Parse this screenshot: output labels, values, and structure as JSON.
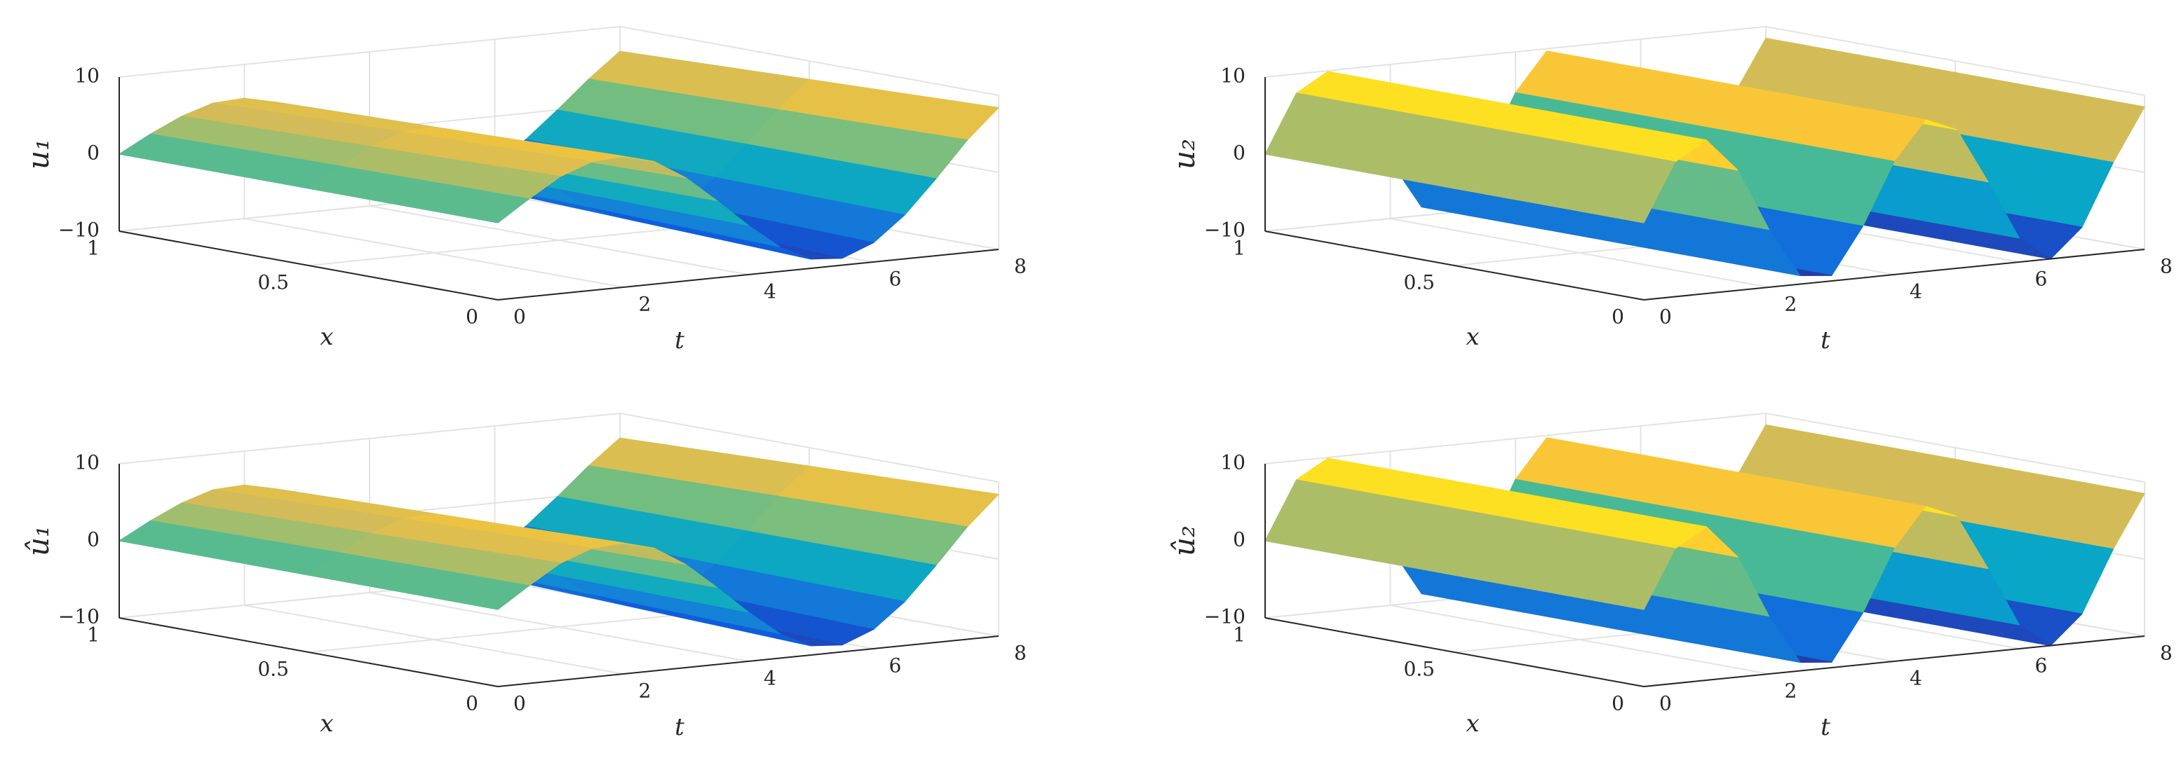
{
  "chart_data": [
    {
      "type": "surface",
      "zlabel": "u₁",
      "xlabel": "x",
      "tlabel": "t",
      "x": [
        0,
        0.5,
        1
      ],
      "t": [
        0,
        0.5,
        1,
        1.5,
        2,
        2.5,
        3,
        3.5,
        4,
        4.5,
        5,
        5.5,
        6,
        6.5,
        7,
        7.5,
        8
      ],
      "z": [
        [
          0,
          2.7,
          5.2,
          6.7,
          7.0,
          5.9,
          3.4,
          0,
          -3.6,
          -6.8,
          -8.8,
          -9.1,
          -7.5,
          -4.3,
          0,
          4.6,
          8.4
        ],
        [
          0,
          2.5,
          4.6,
          6.1,
          6.3,
          5.3,
          3.0,
          0,
          -3.3,
          -6.1,
          -7.9,
          -8.2,
          -6.8,
          -3.9,
          0,
          4.1,
          7.6
        ],
        [
          0,
          2.2,
          4.1,
          5.4,
          5.6,
          4.7,
          2.7,
          0,
          -2.9,
          -5.4,
          -7.0,
          -7.3,
          -6.0,
          -3.4,
          0,
          3.6,
          6.8
        ]
      ],
      "xlim": [
        0,
        1
      ],
      "tlim": [
        0,
        8
      ],
      "zlim": [
        -10,
        10
      ],
      "xticks": [
        0,
        0.5,
        1
      ],
      "tticks": [
        0,
        2,
        4,
        6,
        8
      ],
      "zticks": [
        {
          "value": -10,
          "label": "−10"
        },
        0,
        10
      ],
      "colormap": "parula",
      "grid": true
    },
    {
      "type": "surface",
      "zlabel": "u₂",
      "xlabel": "x",
      "tlabel": "t",
      "x": [
        0,
        0.5,
        1
      ],
      "t": [
        0,
        0.5,
        1,
        1.5,
        2,
        2.5,
        3,
        3.5,
        4,
        4.5,
        5,
        5.5,
        6,
        6.5,
        7,
        7.5,
        8
      ],
      "z": [
        [
          0,
          7.5,
          9.9,
          5.6,
          -2.5,
          -8.9,
          -9.3,
          -3.3,
          4.7,
          9.7,
          8.0,
          0.8,
          -6.9,
          -10.0,
          -6.3,
          1.7,
          8.5
        ],
        [
          0,
          7.5,
          9.9,
          5.6,
          -2.5,
          -8.9,
          -9.3,
          -3.3,
          4.7,
          9.7,
          8.0,
          0.8,
          -6.9,
          -10.0,
          -6.3,
          1.7,
          8.5
        ],
        [
          0,
          7.5,
          9.9,
          5.6,
          -2.5,
          -8.9,
          -9.3,
          -3.3,
          4.7,
          9.7,
          8.0,
          0.8,
          -6.9,
          -10.0,
          -6.3,
          1.7,
          8.5
        ]
      ],
      "xlim": [
        0,
        1
      ],
      "tlim": [
        0,
        8
      ],
      "zlim": [
        -10,
        10
      ],
      "xticks": [
        0,
        0.5,
        1
      ],
      "tticks": [
        0,
        2,
        4,
        6,
        8
      ],
      "zticks": [
        {
          "value": -10,
          "label": "−10"
        },
        0,
        10
      ],
      "colormap": "parula",
      "grid": true
    },
    {
      "type": "surface",
      "zlabel": "û₁",
      "xlabel": "x",
      "tlabel": "t",
      "x": [
        0,
        0.5,
        1
      ],
      "t": [
        0,
        0.5,
        1,
        1.5,
        2,
        2.5,
        3,
        3.5,
        4,
        4.5,
        5,
        5.5,
        6,
        6.5,
        7,
        7.5,
        8
      ],
      "z": [
        [
          0,
          2.7,
          5.2,
          6.7,
          7.0,
          5.9,
          3.4,
          0,
          -3.6,
          -6.8,
          -8.8,
          -9.1,
          -7.5,
          -4.3,
          0,
          4.6,
          8.4
        ],
        [
          0,
          2.5,
          4.6,
          6.1,
          6.3,
          5.3,
          3.0,
          0,
          -3.3,
          -6.1,
          -7.9,
          -8.2,
          -6.8,
          -3.9,
          0,
          4.1,
          7.6
        ],
        [
          0,
          2.2,
          4.1,
          5.4,
          5.6,
          4.7,
          2.7,
          0,
          -2.9,
          -5.4,
          -7.0,
          -7.3,
          -6.0,
          -3.4,
          0,
          3.6,
          6.8
        ]
      ],
      "xlim": [
        0,
        1
      ],
      "tlim": [
        0,
        8
      ],
      "zlim": [
        -10,
        10
      ],
      "xticks": [
        0,
        0.5,
        1
      ],
      "tticks": [
        0,
        2,
        4,
        6,
        8
      ],
      "zticks": [
        {
          "value": -10,
          "label": "−10"
        },
        0,
        10
      ],
      "colormap": "parula",
      "grid": true
    },
    {
      "type": "surface",
      "zlabel": "û₂",
      "xlabel": "x",
      "tlabel": "t",
      "x": [
        0,
        0.5,
        1
      ],
      "t": [
        0,
        0.5,
        1,
        1.5,
        2,
        2.5,
        3,
        3.5,
        4,
        4.5,
        5,
        5.5,
        6,
        6.5,
        7,
        7.5,
        8
      ],
      "z": [
        [
          0,
          7.5,
          9.9,
          5.6,
          -2.5,
          -8.9,
          -9.3,
          -3.3,
          4.7,
          9.7,
          8.0,
          0.8,
          -6.9,
          -10.0,
          -6.3,
          1.7,
          8.5
        ],
        [
          0,
          7.5,
          9.9,
          5.6,
          -2.5,
          -8.9,
          -9.3,
          -3.3,
          4.7,
          9.7,
          8.0,
          0.8,
          -6.9,
          -10.0,
          -6.3,
          1.7,
          8.5
        ],
        [
          0,
          7.5,
          9.9,
          5.6,
          -2.5,
          -8.9,
          -9.3,
          -3.3,
          4.7,
          9.7,
          8.0,
          0.8,
          -6.9,
          -10.0,
          -6.3,
          1.7,
          8.5
        ]
      ],
      "xlim": [
        0,
        1
      ],
      "tlim": [
        0,
        8
      ],
      "zlim": [
        -10,
        10
      ],
      "xticks": [
        0,
        0.5,
        1
      ],
      "tticks": [
        0,
        2,
        4,
        6,
        8
      ],
      "zticks": [
        {
          "value": -10,
          "label": "−10"
        },
        0,
        10
      ],
      "colormap": "parula",
      "grid": true
    }
  ]
}
